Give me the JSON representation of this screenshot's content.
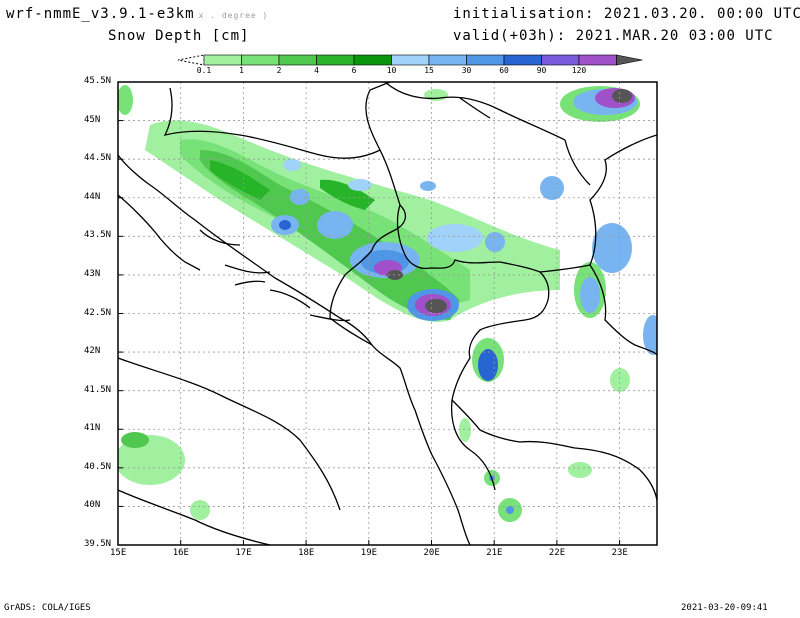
{
  "header": {
    "model": "wrf-nmmE_v3.9.1-e3km",
    "model_suffix": "x . degree )",
    "field": "Snow Depth [cm]",
    "init_label": "initialisation:",
    "init_value": "2021.03.20.  00:00 UTC",
    "valid_label": "valid(+03h):",
    "valid_value": "2021.MAR.20  03:00 UTC"
  },
  "colorbar": {
    "levels": [
      "0.1",
      "1",
      "2",
      "4",
      "6",
      "10",
      "15",
      "30",
      "60",
      "90",
      "120"
    ],
    "colors": [
      "#a0f0a0",
      "#78e278",
      "#50c850",
      "#28b428",
      "#0a960a",
      "#a0d2fa",
      "#78b4f0",
      "#5096e6",
      "#2864d2",
      "#7a5adc",
      "#a050c8",
      "#555555"
    ]
  },
  "axes": {
    "lat_labels": [
      "45.5N",
      "45N",
      "44.5N",
      "44N",
      "43.5N",
      "43N",
      "42.5N",
      "42N",
      "41.5N",
      "41N",
      "40.5N",
      "40N",
      "39.5N"
    ],
    "lon_labels": [
      "15E",
      "16E",
      "17E",
      "18E",
      "19E",
      "20E",
      "21E",
      "22E",
      "23E"
    ]
  },
  "footer": {
    "left": "GrADS: COLA/IGES",
    "right": "2021-03-20-09:41"
  },
  "palette": {
    "land": "#ffffff",
    "border": "#000000",
    "grid": "#9a9a9a"
  }
}
